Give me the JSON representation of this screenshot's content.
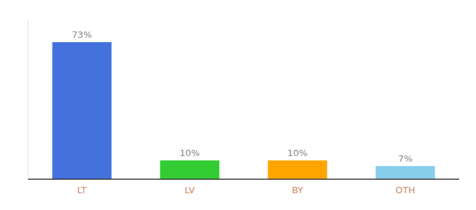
{
  "chart_data": {
    "type": "bar",
    "categories": [
      "LT",
      "LV",
      "BY",
      "OTH"
    ],
    "values": [
      73,
      10,
      10,
      7
    ],
    "value_labels": [
      "73%",
      "10%",
      "10%",
      "7%"
    ],
    "colors": [
      "#4472DD",
      "#33CC33",
      "#FFA500",
      "#87CEEB"
    ],
    "ylim": [
      0,
      85
    ],
    "data_labels": true,
    "tick_labels": "x",
    "grid": false
  }
}
